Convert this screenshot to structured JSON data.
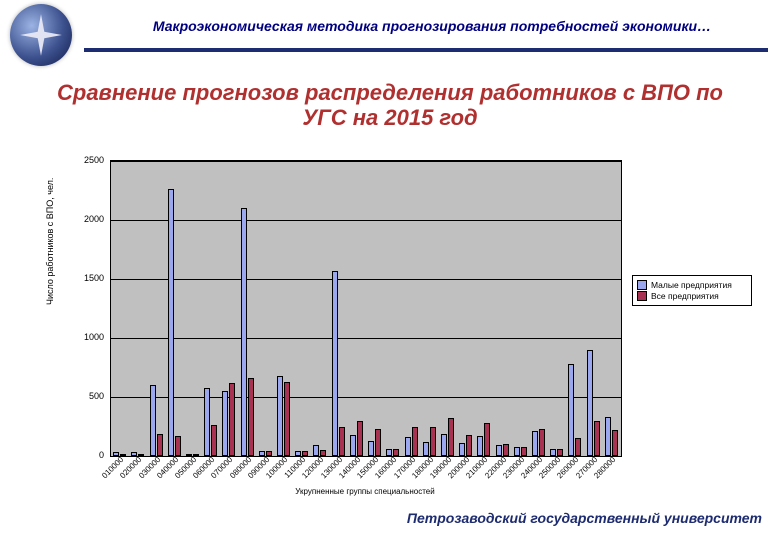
{
  "header": {
    "text": "Макроэкономическая методика прогнозирования потребностей экономики…"
  },
  "title": "Сравнение прогнозов распределения работников с ВПО по УГС на 2015 год",
  "chart": {
    "type": "bar",
    "ylabel": "Число работников с ВПО, чел.",
    "xlabel": "Укрупненные группы специальностей",
    "ymax": 2500,
    "ytick_step": 500,
    "yticks": [
      0,
      500,
      1000,
      1500,
      2000,
      2500
    ],
    "plot_bg": "#c0c0c0",
    "grid_color": "#000000",
    "series_a": {
      "label": "Малые предприятия",
      "color": "#9ba8f0"
    },
    "series_b": {
      "label": "Все предприятия",
      "color": "#a83252"
    },
    "categories": [
      "010000",
      "020000",
      "030000",
      "040000",
      "050000",
      "060000",
      "070000",
      "080000",
      "090000",
      "100000",
      "110000",
      "120000",
      "130000",
      "140000",
      "150000",
      "160000",
      "170000",
      "180000",
      "190000",
      "200000",
      "210000",
      "220000",
      "230000",
      "240000",
      "250000",
      "260000",
      "270000",
      "280000"
    ],
    "values_a": [
      30,
      30,
      600,
      2260,
      20,
      580,
      550,
      2100,
      40,
      680,
      40,
      90,
      1570,
      180,
      130,
      60,
      160,
      120,
      190,
      110,
      170,
      90,
      80,
      210,
      60,
      780,
      900,
      330
    ],
    "values_b": [
      20,
      20,
      190,
      170,
      20,
      260,
      620,
      660,
      40,
      630,
      40,
      50,
      250,
      300,
      230,
      60,
      250,
      250,
      320,
      180,
      280,
      100,
      80,
      230,
      60,
      150,
      300,
      220
    ]
  },
  "legend": {
    "items": [
      {
        "color": "#9ba8f0",
        "label": "Малые предприятия"
      },
      {
        "color": "#a83252",
        "label": "Все предприятия"
      }
    ]
  },
  "footer": "Петрозаводский государственный университет"
}
